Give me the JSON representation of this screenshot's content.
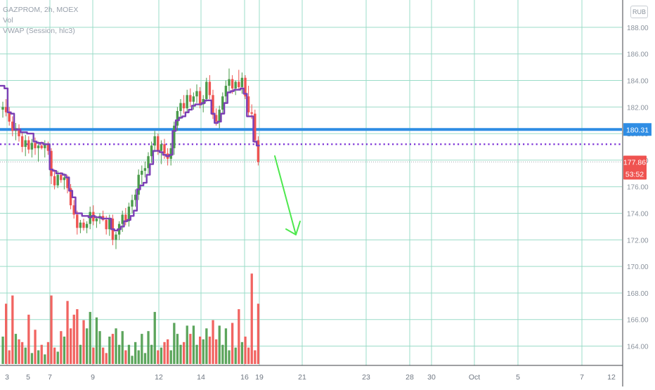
{
  "legend": {
    "symbol_line": "GAZPROM, 2h, MOEX",
    "vol_line": "Vol",
    "vwap_line": "VWAP (Session, hlc3)"
  },
  "currency": "RUB",
  "colors": {
    "up": "#4a9b4a",
    "down": "#ef5350",
    "vwap": "#7b3fb5",
    "support_line": "#2f8de4",
    "price_badge": "#ef5350",
    "arrow": "#4ee84e",
    "grid": "#9bdcc8",
    "dotted": "#7a2fd6"
  },
  "chart_data": {
    "type": "candlestick",
    "title": "GAZPROM, 2h, MOEX",
    "y_axis": {
      "min": 163,
      "max": 189,
      "tick_labels": [
        "164.00",
        "166.00",
        "168.00",
        "170.00",
        "172.00",
        "174.00",
        "176.00",
        "178.00",
        "180.00",
        "182.00",
        "184.00",
        "186.00",
        "188.00"
      ],
      "ticks": [
        164,
        166,
        168,
        170,
        172,
        174,
        176,
        178,
        180,
        182,
        184,
        186,
        188
      ]
    },
    "x_axis": {
      "tick_labels": [
        "3",
        "5",
        "7",
        "9",
        "12",
        "14",
        "16",
        "19",
        "21",
        "23",
        "28",
        "30",
        "Oct",
        "5",
        "7",
        "12"
      ]
    },
    "price_levels": {
      "support": 180.31,
      "vwap_level": 179.2,
      "last_close": 177.86,
      "support_label": "180.31",
      "last_label": "177.86",
      "countdown": "53:52"
    },
    "series": [
      {
        "name": "GAZPROM",
        "ohlc": [
          [
            181.8,
            182.4,
            181.2,
            182.0
          ],
          [
            182.0,
            182.6,
            181.3,
            181.6
          ],
          [
            181.6,
            182.0,
            180.6,
            180.9
          ],
          [
            180.9,
            181.3,
            179.8,
            180.2
          ],
          [
            180.2,
            180.8,
            179.5,
            180.4
          ],
          [
            180.4,
            180.7,
            179.4,
            179.8
          ],
          [
            179.8,
            180.1,
            178.6,
            179.0
          ],
          [
            179.0,
            179.9,
            178.3,
            179.5
          ],
          [
            179.5,
            179.8,
            178.5,
            178.8
          ],
          [
            178.8,
            179.6,
            178.2,
            179.3
          ],
          [
            179.3,
            179.7,
            178.4,
            178.9
          ],
          [
            178.9,
            179.4,
            177.9,
            179.1
          ],
          [
            179.1,
            179.4,
            178.8,
            178.9
          ],
          [
            178.9,
            179.5,
            178.2,
            179.2
          ],
          [
            179.2,
            179.4,
            178.4,
            178.7
          ],
          [
            178.7,
            178.9,
            176.2,
            176.8
          ],
          [
            176.8,
            177.3,
            175.8,
            176.1
          ],
          [
            176.1,
            177.2,
            175.9,
            176.9
          ],
          [
            176.9,
            177.1,
            176.3,
            176.5
          ],
          [
            176.5,
            177.0,
            175.8,
            176.7
          ],
          [
            176.7,
            176.9,
            175.5,
            175.9
          ],
          [
            175.9,
            176.2,
            174.3,
            174.6
          ],
          [
            174.6,
            175.0,
            173.6,
            173.9
          ],
          [
            173.9,
            174.2,
            172.4,
            172.9
          ],
          [
            172.9,
            173.5,
            172.5,
            173.3
          ],
          [
            173.3,
            173.6,
            172.7,
            172.9
          ],
          [
            172.9,
            173.4,
            172.5,
            173.2
          ],
          [
            173.2,
            174.5,
            172.8,
            174.1
          ],
          [
            174.1,
            174.6,
            173.1,
            173.4
          ],
          [
            173.4,
            173.8,
            172.9,
            173.6
          ],
          [
            173.6,
            174.0,
            173.2,
            173.8
          ],
          [
            173.8,
            174.2,
            173.4,
            173.5
          ],
          [
            173.5,
            173.8,
            172.4,
            172.8
          ],
          [
            172.8,
            173.9,
            172.3,
            173.6
          ],
          [
            173.6,
            173.9,
            171.6,
            172.0
          ],
          [
            172.0,
            172.6,
            171.3,
            172.4
          ],
          [
            172.4,
            173.4,
            172.0,
            173.2
          ],
          [
            173.2,
            174.2,
            172.6,
            173.9
          ],
          [
            173.9,
            174.4,
            173.1,
            173.4
          ],
          [
            173.4,
            174.8,
            173.0,
            174.5
          ],
          [
            174.5,
            175.4,
            174.0,
            175.0
          ],
          [
            175.0,
            175.8,
            174.5,
            175.4
          ],
          [
            175.4,
            177.3,
            175.0,
            176.9
          ],
          [
            176.9,
            177.6,
            176.2,
            177.2
          ],
          [
            177.2,
            177.9,
            176.7,
            177.4
          ],
          [
            177.4,
            178.6,
            177.0,
            178.3
          ],
          [
            178.3,
            179.4,
            177.8,
            179.1
          ],
          [
            179.1,
            180.2,
            178.6,
            179.8
          ],
          [
            179.8,
            180.0,
            178.4,
            178.7
          ],
          [
            178.7,
            179.5,
            177.7,
            179.2
          ],
          [
            179.2,
            179.6,
            178.1,
            178.5
          ],
          [
            178.5,
            178.9,
            177.6,
            178.1
          ],
          [
            178.1,
            179.3,
            177.6,
            178.9
          ],
          [
            178.9,
            180.9,
            178.4,
            180.6
          ],
          [
            180.6,
            182.0,
            180.2,
            181.7
          ],
          [
            181.7,
            182.6,
            181.1,
            182.3
          ],
          [
            182.3,
            182.9,
            181.5,
            181.9
          ],
          [
            181.9,
            183.3,
            181.6,
            182.9
          ],
          [
            182.9,
            183.4,
            182.0,
            182.4
          ],
          [
            182.4,
            183.1,
            181.8,
            182.8
          ],
          [
            182.8,
            183.7,
            182.3,
            183.2
          ],
          [
            183.2,
            183.5,
            181.9,
            182.2
          ],
          [
            182.2,
            182.9,
            181.6,
            182.6
          ],
          [
            182.6,
            184.2,
            182.4,
            183.9
          ],
          [
            183.9,
            184.4,
            182.6,
            182.9
          ],
          [
            182.9,
            183.3,
            181.1,
            181.4
          ],
          [
            181.4,
            181.9,
            180.6,
            180.9
          ],
          [
            180.9,
            182.1,
            180.4,
            181.8
          ],
          [
            181.8,
            183.1,
            181.5,
            182.8
          ],
          [
            182.8,
            184.0,
            182.3,
            183.6
          ],
          [
            183.6,
            184.9,
            183.1,
            184.1
          ],
          [
            184.1,
            184.4,
            183.0,
            183.4
          ],
          [
            183.4,
            184.0,
            182.9,
            183.9
          ],
          [
            183.9,
            184.8,
            183.3,
            183.5
          ],
          [
            183.5,
            184.6,
            183.0,
            184.2
          ],
          [
            184.2,
            184.4,
            182.6,
            182.8
          ],
          [
            182.8,
            183.6,
            181.3,
            181.6
          ],
          [
            181.6,
            182.2,
            181.1,
            181.5
          ],
          [
            181.5,
            181.8,
            179.3,
            179.5
          ],
          [
            179.5,
            179.8,
            177.6,
            177.86
          ]
        ]
      },
      {
        "name": "Vol",
        "values": [
          20,
          44,
          10,
          50,
          22,
          18,
          16,
          12,
          36,
          8,
          25,
          10,
          14,
          7,
          16,
          50,
          12,
          9,
          24,
          20,
          46,
          26,
          36,
          40,
          14,
          32,
          26,
          38,
          12,
          34,
          24,
          12,
          8,
          20,
          22,
          26,
          14,
          24,
          10,
          14,
          6,
          16,
          10,
          22,
          8,
          24,
          14,
          38,
          10,
          12,
          16,
          18,
          10,
          30,
          22,
          14,
          16,
          28,
          22,
          28,
          14,
          20,
          18,
          26,
          20,
          32,
          18,
          28,
          14,
          26,
          10,
          30,
          12,
          40,
          16,
          20,
          12,
          66,
          10,
          44
        ]
      },
      {
        "name": "VWAP (Session, hlc3)",
        "values": [
          183.6,
          183.4,
          181.6,
          181.5,
          180.3,
          180.3,
          180.1,
          180.1,
          180.0,
          180.0,
          179.4,
          179.3,
          179.3,
          179.2,
          179.2,
          177.3,
          177.2,
          177.0,
          177.0,
          176.9,
          176.7,
          175.7,
          175.2,
          174.0,
          174.0,
          173.8,
          173.8,
          173.7,
          173.8,
          173.7,
          173.7,
          173.6,
          173.6,
          173.6,
          172.8,
          172.7,
          172.8,
          173.0,
          173.4,
          173.5,
          173.8,
          174.2,
          175.8,
          176.1,
          176.3,
          176.9,
          177.7,
          178.7,
          178.7,
          178.6,
          178.4,
          178.3,
          178.4,
          180.2,
          181.0,
          181.2,
          181.3,
          181.6,
          181.8,
          182.1,
          182.2,
          182.2,
          182.3,
          182.5,
          182.5,
          181.5,
          180.8,
          180.9,
          181.5,
          182.3,
          183.1,
          183.2,
          183.3,
          183.3,
          183.4,
          183.0,
          181.3,
          181.3,
          179.4,
          179.1
        ]
      }
    ],
    "grid": true,
    "legend_position": "top-left"
  }
}
